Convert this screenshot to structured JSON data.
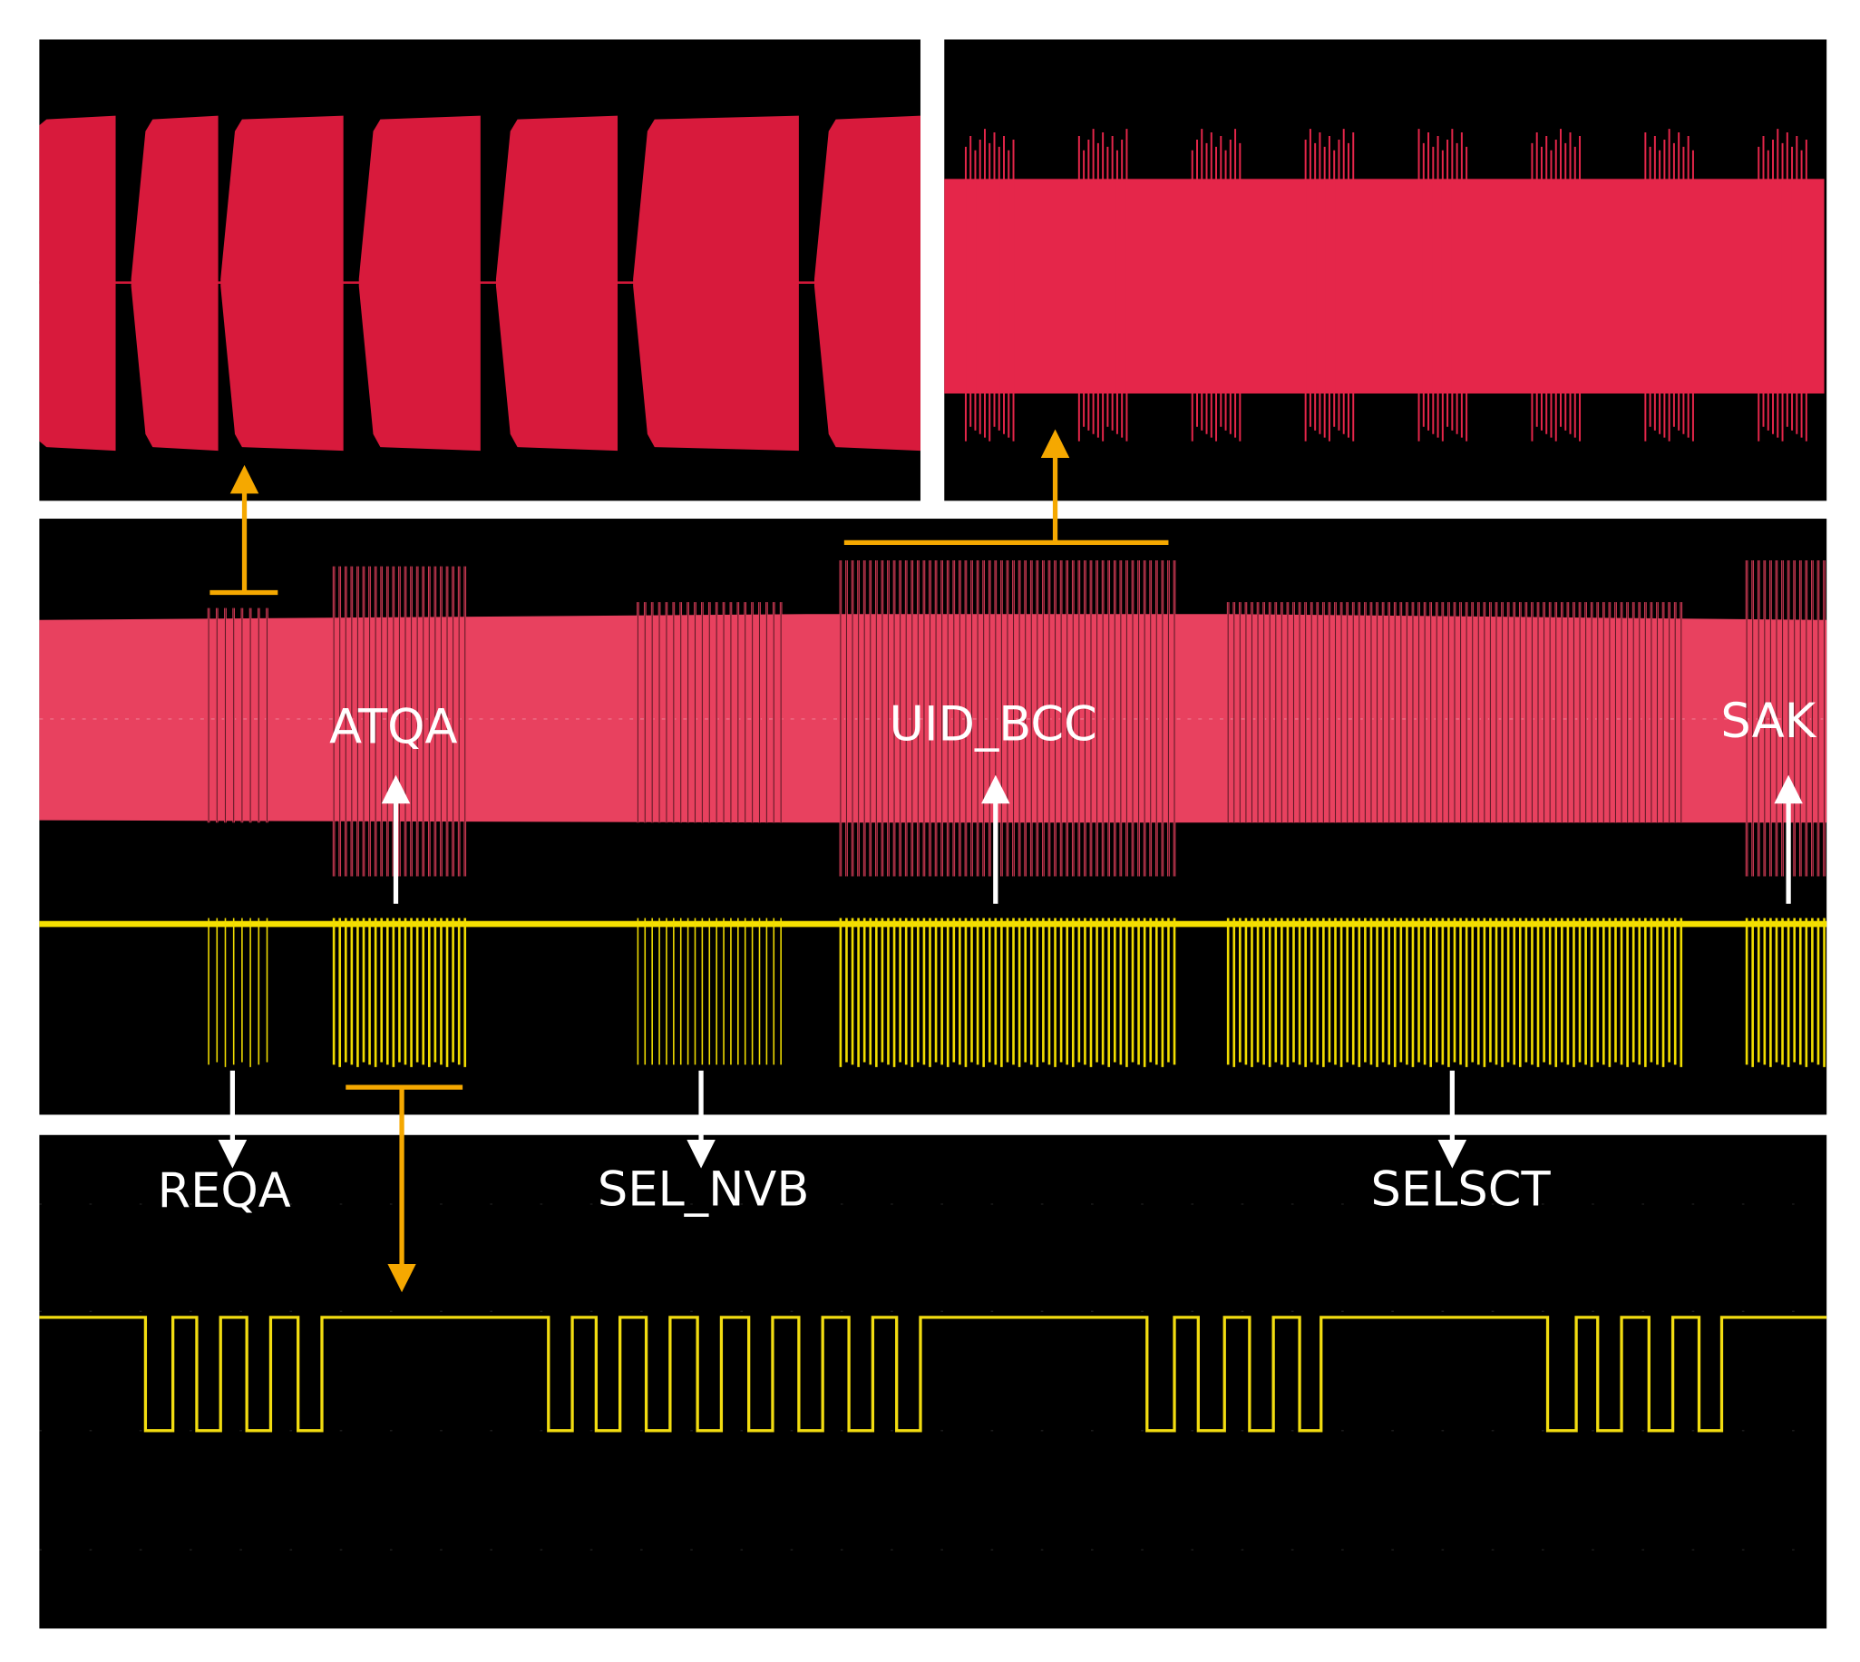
{
  "labels": {
    "atqa": "ATQA",
    "uid_bcc": "UID_BCC",
    "sak": "SAK",
    "reqa": "REQA",
    "sel_nvb": "SEL_NVB",
    "selsct": "SELSCT"
  }
}
